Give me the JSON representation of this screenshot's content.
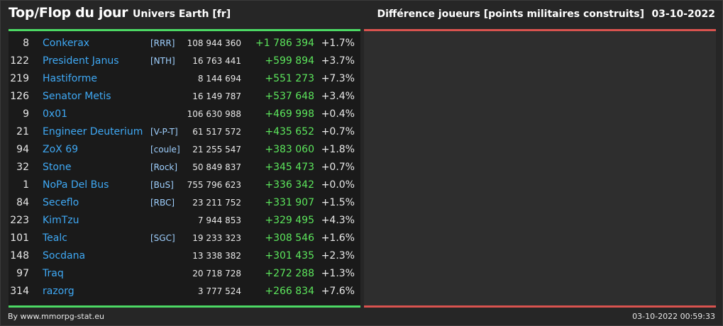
{
  "header": {
    "title": "Top/Flop du jour",
    "universe": "Univers Earth [fr]",
    "subtitle": "Différence joueurs [points militaires construits]",
    "date": "03-10-2022"
  },
  "colors": {
    "top_accent": "#4cd964",
    "flop_accent": "#d9534f",
    "player_link": "#3fa9f5",
    "alliance_link": "#9fd0ff",
    "positive_diff": "#5ce65c"
  },
  "top_list": [
    {
      "rank": "8",
      "name": "Conkerax",
      "alliance": "[RRR]",
      "points": "108 944 360",
      "diff": "+1 786 394",
      "pct": "+1.7%"
    },
    {
      "rank": "122",
      "name": "President Janus",
      "alliance": "[NTH]",
      "points": "16 763 441",
      "diff": "+599 894",
      "pct": "+3.7%"
    },
    {
      "rank": "219",
      "name": "Hastiforme",
      "alliance": "",
      "points": "8 144 694",
      "diff": "+551 273",
      "pct": "+7.3%"
    },
    {
      "rank": "126",
      "name": "Senator Metis",
      "alliance": "",
      "points": "16 149 787",
      "diff": "+537 648",
      "pct": "+3.4%"
    },
    {
      "rank": "9",
      "name": "0x01",
      "alliance": "",
      "points": "106 630 988",
      "diff": "+469 998",
      "pct": "+0.4%"
    },
    {
      "rank": "21",
      "name": "Engineer Deuterium",
      "alliance": "[V-P-T]",
      "points": "61 517 572",
      "diff": "+435 652",
      "pct": "+0.7%"
    },
    {
      "rank": "94",
      "name": "ZoX 69",
      "alliance": "[coule]",
      "points": "21 255 547",
      "diff": "+383 060",
      "pct": "+1.8%"
    },
    {
      "rank": "32",
      "name": "Stone",
      "alliance": "[Rock]",
      "points": "50 849 837",
      "diff": "+345 473",
      "pct": "+0.7%"
    },
    {
      "rank": "1",
      "name": "NoPa Del Bus",
      "alliance": "[BuS]",
      "points": "755 796 623",
      "diff": "+336 342",
      "pct": "+0.0%"
    },
    {
      "rank": "84",
      "name": "Seceflo",
      "alliance": "[RBC]",
      "points": "23 211 752",
      "diff": "+331 907",
      "pct": "+1.5%"
    },
    {
      "rank": "223",
      "name": "KimTzu",
      "alliance": "",
      "points": "7 944 853",
      "diff": "+329 495",
      "pct": "+4.3%"
    },
    {
      "rank": "101",
      "name": "Tealc",
      "alliance": "[SGC]",
      "points": "19 233 323",
      "diff": "+308 546",
      "pct": "+1.6%"
    },
    {
      "rank": "148",
      "name": "Socdana",
      "alliance": "",
      "points": "13 338 382",
      "diff": "+301 435",
      "pct": "+2.3%"
    },
    {
      "rank": "97",
      "name": "Traq",
      "alliance": "",
      "points": "20 718 728",
      "diff": "+272 288",
      "pct": "+1.3%"
    },
    {
      "rank": "314",
      "name": "razorg",
      "alliance": "",
      "points": "3 777 524",
      "diff": "+266 834",
      "pct": "+7.6%"
    }
  ],
  "footer": {
    "credit": "By www.mmorpg-stat.eu",
    "timestamp": "03-10-2022 00:59:33"
  }
}
